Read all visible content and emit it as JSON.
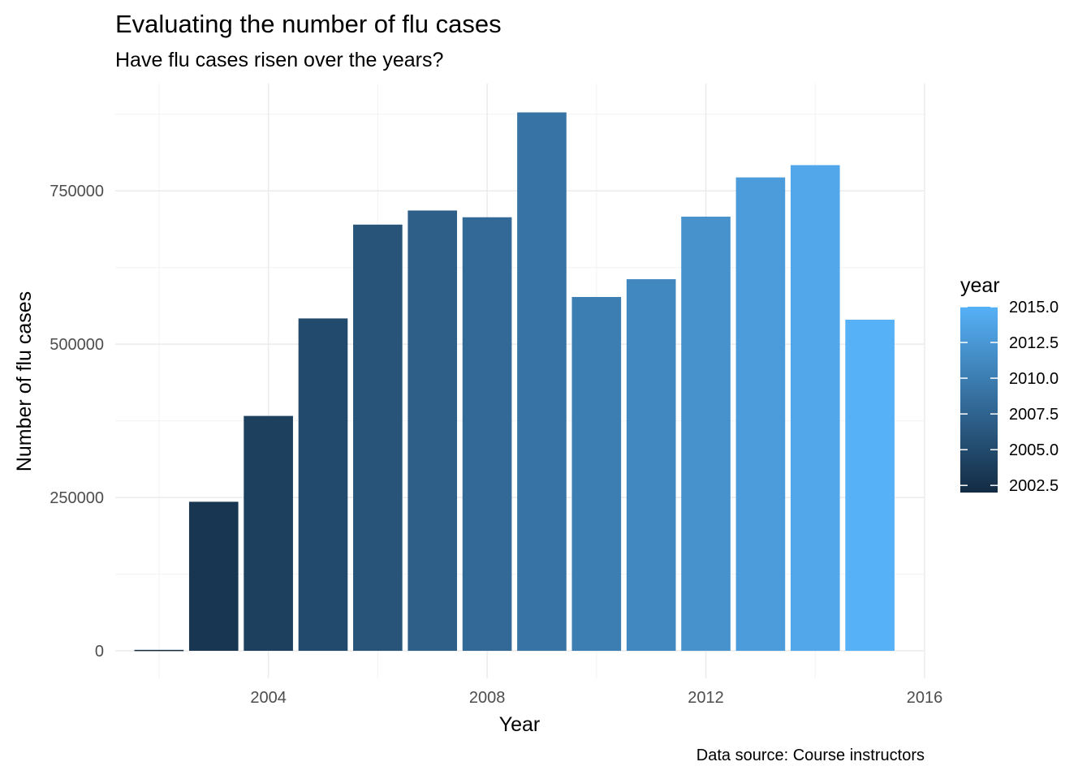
{
  "chart_data": {
    "type": "bar",
    "title": "Evaluating the number of flu cases",
    "subtitle": "Have flu cases risen over the years?",
    "caption": "Data source: Course instructors",
    "xlabel": "Year",
    "ylabel": "Number of flu cases",
    "x": [
      2002,
      2003,
      2004,
      2005,
      2006,
      2007,
      2008,
      2009,
      2010,
      2011,
      2012,
      2013,
      2014,
      2015
    ],
    "values": [
      1500,
      243000,
      383000,
      542000,
      695000,
      718000,
      707000,
      878000,
      577000,
      606000,
      708000,
      772000,
      792000,
      540000
    ],
    "xlim": [
      2001.2,
      2016.0
    ],
    "ylim": [
      -45000,
      925000
    ],
    "x_ticks": [
      2004,
      2008,
      2012,
      2016
    ],
    "x_tick_labels": [
      "2004",
      "2008",
      "2012",
      "2016"
    ],
    "y_ticks": [
      0,
      250000,
      500000,
      750000
    ],
    "y_tick_labels": [
      "0",
      "250000",
      "500000",
      "750000"
    ],
    "grid": true,
    "legend": {
      "title": "year",
      "position": "right",
      "type": "continuous",
      "range": [
        2002,
        2015
      ],
      "breaks": [
        2002.5,
        2005.0,
        2007.5,
        2010.0,
        2012.5,
        2015.0
      ],
      "labels": [
        "2002.5",
        "2005.0",
        "2007.5",
        "2010.0",
        "2012.5",
        "2015.0"
      ],
      "low_color": "#132B43",
      "high_color": "#56B1F7"
    }
  }
}
